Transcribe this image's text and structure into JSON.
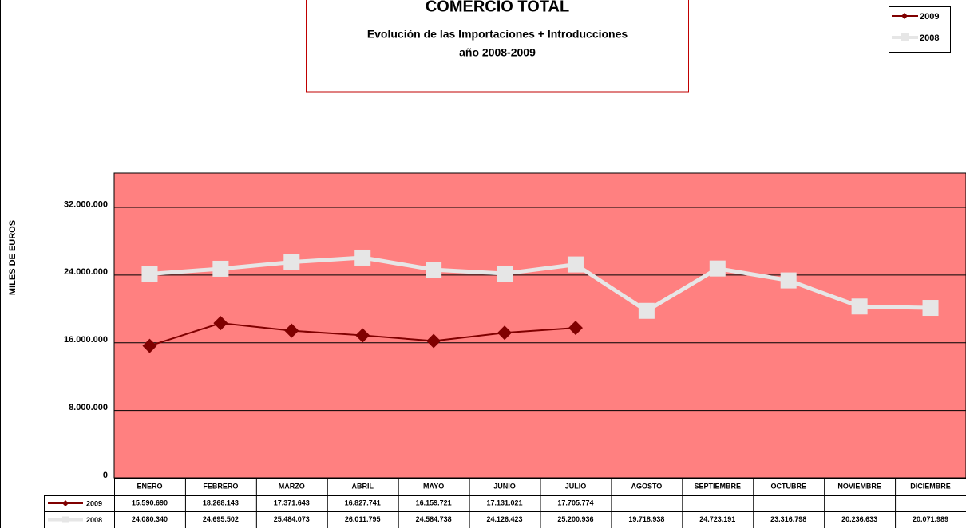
{
  "chart_data": {
    "type": "line",
    "title": "COMERCIO TOTAL",
    "subtitle": [
      "Evolución de las Importaciones + Introducciones",
      "año 2008-2009"
    ],
    "y_label": "MILES DE EUROS",
    "categories": [
      "ENERO",
      "FEBRERO",
      "MARZO",
      "ABRIL",
      "MAYO",
      "JUNIO",
      "JULIO",
      "AGOSTO",
      "SEPTIEMBRE",
      "OCTUBRE",
      "NOVIEMBRE",
      "DICIEMBRE"
    ],
    "series": [
      {
        "name": "2009",
        "color": "#800000",
        "marker": "diamond",
        "values": [
          15590690,
          18268143,
          17371643,
          16827741,
          16159721,
          17131021,
          17705774,
          null,
          null,
          null,
          null,
          null
        ],
        "value_labels": [
          "15.590.690",
          "18.268.143",
          "17.371.643",
          "16.827.741",
          "16.159.721",
          "17.131.021",
          "17.705.774",
          null,
          null,
          null,
          null,
          null
        ]
      },
      {
        "name": "2008",
        "color": "#e6e6e6",
        "marker": "square",
        "values": [
          24080340,
          24695502,
          25484073,
          26011795,
          24584738,
          24126423,
          25200936,
          19718938,
          24723191,
          23316798,
          20236633,
          20071989
        ],
        "value_labels": [
          "24.080.340",
          "24.695.502",
          "25.484.073",
          "26.011.795",
          "24.584.738",
          "24.126.423",
          "25.200.936",
          "19.718.938",
          "24.723.191",
          "23.316.798",
          "20.236.633",
          "20.071.989"
        ]
      }
    ],
    "ylim": [
      0,
      36000000
    ],
    "yticks": [
      0,
      {
        "value": 8000000,
        "label": "8.000.000"
      },
      {
        "value": 16000000,
        "label": "16.000.000"
      },
      {
        "value": 24000000,
        "label": "24.000.000"
      },
      {
        "value": 32000000,
        "label": "32.000.000"
      }
    ],
    "grid": true,
    "legend": "top-right",
    "plot_background": "#ff8080"
  }
}
